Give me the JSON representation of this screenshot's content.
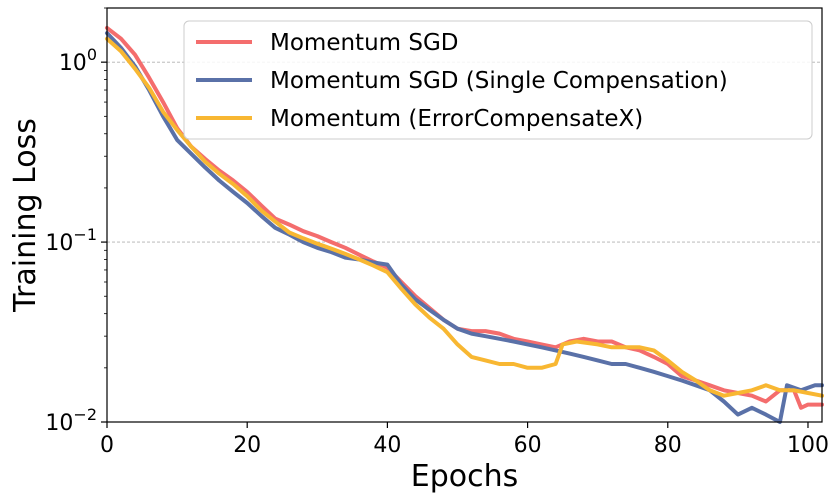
{
  "chart_data": {
    "type": "line",
    "xlabel": "Epochs",
    "ylabel": "Training Loss",
    "yscale": "log",
    "xlim": [
      0,
      102
    ],
    "ylim": [
      0.01,
      2.0
    ],
    "x_ticks": [
      0,
      20,
      40,
      60,
      80,
      100
    ],
    "x_tick_labels": [
      "0",
      "20",
      "40",
      "60",
      "80",
      "100"
    ],
    "y_ticks": [
      0.01,
      0.1,
      1.0
    ],
    "y_tick_labels": [
      {
        "base": "10",
        "exp": "−2"
      },
      {
        "base": "10",
        "exp": "−1"
      },
      {
        "base": "10",
        "exp": "0"
      }
    ],
    "grid": "horizontal dashed at major y ticks",
    "legend_position": "top-right",
    "series": [
      {
        "name": "Momentum SGD",
        "color": "#f46d6d",
        "points": [
          [
            0,
            1.55
          ],
          [
            2,
            1.35
          ],
          [
            4,
            1.1
          ],
          [
            6,
            0.82
          ],
          [
            8,
            0.6
          ],
          [
            10,
            0.43
          ],
          [
            12,
            0.34
          ],
          [
            14,
            0.29
          ],
          [
            16,
            0.25
          ],
          [
            18,
            0.22
          ],
          [
            20,
            0.19
          ],
          [
            22,
            0.16
          ],
          [
            24,
            0.135
          ],
          [
            26,
            0.125
          ],
          [
            28,
            0.115
          ],
          [
            30,
            0.108
          ],
          [
            32,
            0.1
          ],
          [
            34,
            0.093
          ],
          [
            36,
            0.085
          ],
          [
            38,
            0.078
          ],
          [
            40,
            0.072
          ],
          [
            42,
            0.06
          ],
          [
            44,
            0.05
          ],
          [
            46,
            0.043
          ],
          [
            48,
            0.037
          ],
          [
            50,
            0.033
          ],
          [
            52,
            0.032
          ],
          [
            54,
            0.032
          ],
          [
            56,
            0.031
          ],
          [
            58,
            0.029
          ],
          [
            60,
            0.028
          ],
          [
            62,
            0.027
          ],
          [
            64,
            0.026
          ],
          [
            66,
            0.028
          ],
          [
            68,
            0.029
          ],
          [
            70,
            0.028
          ],
          [
            72,
            0.028
          ],
          [
            74,
            0.026
          ],
          [
            76,
            0.025
          ],
          [
            78,
            0.023
          ],
          [
            80,
            0.021
          ],
          [
            82,
            0.018
          ],
          [
            84,
            0.017
          ],
          [
            86,
            0.016
          ],
          [
            88,
            0.015
          ],
          [
            90,
            0.0145
          ],
          [
            92,
            0.014
          ],
          [
            94,
            0.013
          ],
          [
            96,
            0.015
          ],
          [
            98,
            0.015
          ],
          [
            99,
            0.012
          ],
          [
            100,
            0.0125
          ],
          [
            102,
            0.0125
          ]
        ]
      },
      {
        "name": "Momentum SGD (Single Compensation)",
        "color": "#5a71a8",
        "points": [
          [
            0,
            1.45
          ],
          [
            2,
            1.2
          ],
          [
            4,
            0.95
          ],
          [
            6,
            0.7
          ],
          [
            8,
            0.5
          ],
          [
            10,
            0.37
          ],
          [
            12,
            0.31
          ],
          [
            14,
            0.26
          ],
          [
            16,
            0.22
          ],
          [
            18,
            0.19
          ],
          [
            20,
            0.165
          ],
          [
            22,
            0.14
          ],
          [
            24,
            0.12
          ],
          [
            26,
            0.11
          ],
          [
            28,
            0.1
          ],
          [
            30,
            0.093
          ],
          [
            32,
            0.088
          ],
          [
            34,
            0.082
          ],
          [
            36,
            0.08
          ],
          [
            38,
            0.077
          ],
          [
            40,
            0.075
          ],
          [
            42,
            0.058
          ],
          [
            44,
            0.048
          ],
          [
            46,
            0.042
          ],
          [
            48,
            0.037
          ],
          [
            50,
            0.033
          ],
          [
            52,
            0.031
          ],
          [
            54,
            0.03
          ],
          [
            56,
            0.029
          ],
          [
            58,
            0.028
          ],
          [
            60,
            0.027
          ],
          [
            62,
            0.026
          ],
          [
            64,
            0.025
          ],
          [
            66,
            0.024
          ],
          [
            68,
            0.023
          ],
          [
            70,
            0.022
          ],
          [
            72,
            0.021
          ],
          [
            74,
            0.021
          ],
          [
            76,
            0.02
          ],
          [
            78,
            0.019
          ],
          [
            80,
            0.018
          ],
          [
            82,
            0.017
          ],
          [
            84,
            0.016
          ],
          [
            86,
            0.015
          ],
          [
            88,
            0.013
          ],
          [
            90,
            0.011
          ],
          [
            92,
            0.012
          ],
          [
            94,
            0.011
          ],
          [
            96,
            0.01
          ],
          [
            97,
            0.016
          ],
          [
            99,
            0.015
          ],
          [
            101,
            0.016
          ],
          [
            102,
            0.016
          ]
        ]
      },
      {
        "name": "Momentum (ErrorCompensateX)",
        "color": "#f8b732",
        "points": [
          [
            0,
            1.35
          ],
          [
            2,
            1.15
          ],
          [
            4,
            0.92
          ],
          [
            6,
            0.72
          ],
          [
            8,
            0.53
          ],
          [
            10,
            0.42
          ],
          [
            12,
            0.34
          ],
          [
            14,
            0.28
          ],
          [
            16,
            0.24
          ],
          [
            18,
            0.21
          ],
          [
            20,
            0.18
          ],
          [
            22,
            0.15
          ],
          [
            24,
            0.13
          ],
          [
            26,
            0.113
          ],
          [
            28,
            0.105
          ],
          [
            30,
            0.098
          ],
          [
            32,
            0.092
          ],
          [
            34,
            0.086
          ],
          [
            36,
            0.08
          ],
          [
            38,
            0.074
          ],
          [
            40,
            0.068
          ],
          [
            42,
            0.055
          ],
          [
            44,
            0.045
          ],
          [
            46,
            0.038
          ],
          [
            48,
            0.033
          ],
          [
            50,
            0.027
          ],
          [
            52,
            0.023
          ],
          [
            54,
            0.022
          ],
          [
            56,
            0.021
          ],
          [
            58,
            0.021
          ],
          [
            60,
            0.02
          ],
          [
            62,
            0.02
          ],
          [
            64,
            0.021
          ],
          [
            65,
            0.027
          ],
          [
            67,
            0.028
          ],
          [
            70,
            0.027
          ],
          [
            72,
            0.026
          ],
          [
            74,
            0.026
          ],
          [
            76,
            0.026
          ],
          [
            78,
            0.025
          ],
          [
            80,
            0.022
          ],
          [
            82,
            0.019
          ],
          [
            84,
            0.017
          ],
          [
            86,
            0.015
          ],
          [
            88,
            0.014
          ],
          [
            90,
            0.0145
          ],
          [
            92,
            0.015
          ],
          [
            94,
            0.016
          ],
          [
            96,
            0.015
          ],
          [
            98,
            0.015
          ],
          [
            100,
            0.0145
          ],
          [
            102,
            0.014
          ]
        ]
      }
    ]
  }
}
